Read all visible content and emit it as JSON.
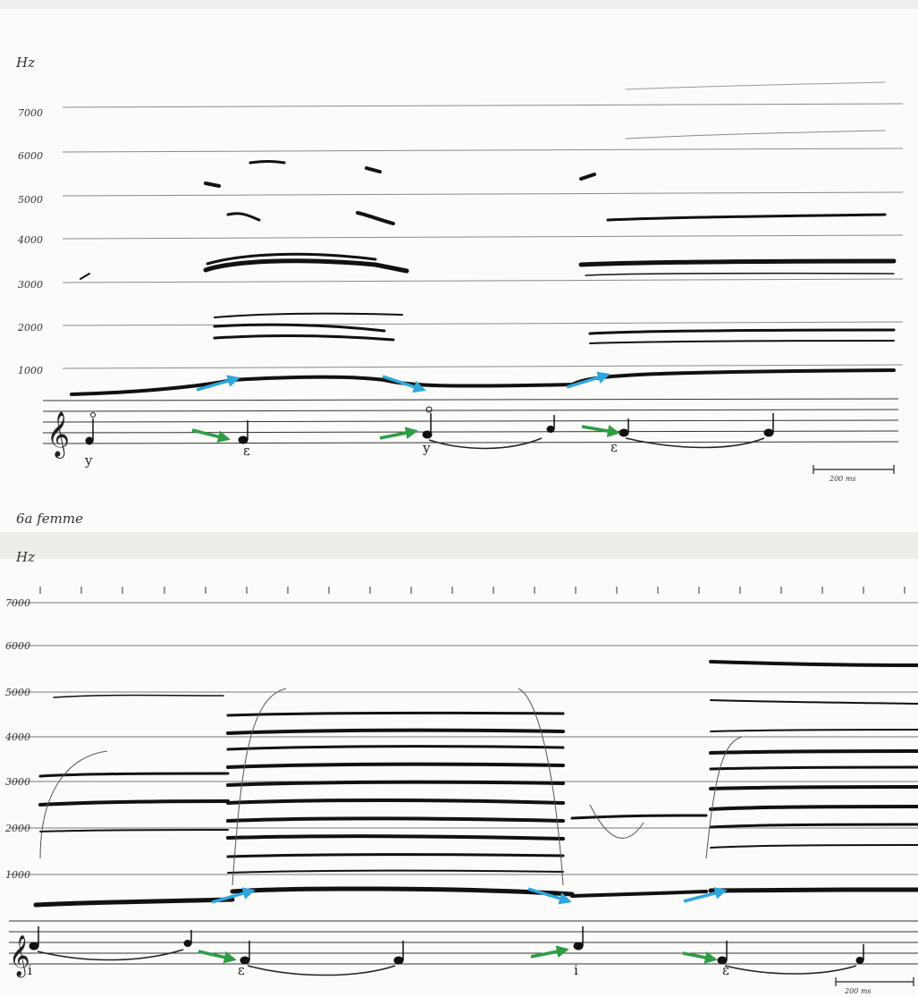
{
  "panel1": {
    "hz_label": "Hz",
    "freq_ticks": [
      "7000",
      "6000",
      "5000",
      "4000",
      "3000",
      "2000",
      "1000"
    ],
    "vowels": [
      "y",
      "ε",
      "y",
      "ε"
    ],
    "scale_label": "200 ms"
  },
  "panel2": {
    "title": "6a femme",
    "hz_label": "Hz",
    "freq_ticks": [
      "7000",
      "6000",
      "5000",
      "4000",
      "3000",
      "2000",
      "1000"
    ],
    "vowels": [
      "i",
      "ε",
      "i",
      "ε"
    ],
    "scale_label": "200 ms"
  },
  "colors": {
    "blue_arrow": "#2fa6de",
    "green_arrow": "#2e9e45",
    "formant": "#111111",
    "grid": "#777777"
  }
}
